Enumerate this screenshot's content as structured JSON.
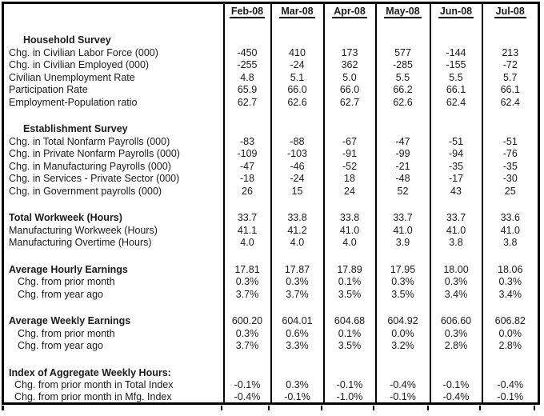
{
  "chart_data": {
    "type": "table",
    "title": "",
    "columns": [
      "Feb-08",
      "Mar-08",
      "Apr-08",
      "May-08",
      "Jun-08",
      "Jul-08"
    ],
    "groups": [
      {
        "rows": [
          {
            "label": "Household Survey",
            "style": "section"
          },
          {
            "label": "Chg. in Civilian Labor Force (000)",
            "values": [
              "-450",
              "410",
              "173",
              "577",
              "-144",
              "213"
            ]
          },
          {
            "label": "Chg. in Civilian Employed (000)",
            "values": [
              "-255",
              "-24",
              "362",
              "-285",
              "-155",
              "-72"
            ]
          },
          {
            "label": "Civilian Unemployment Rate",
            "values": [
              "4.8",
              "5.1",
              "5.0",
              "5.5",
              "5.5",
              "5.7"
            ]
          },
          {
            "label": "Participation Rate",
            "values": [
              "65.9",
              "66.0",
              "66.0",
              "66.2",
              "66.1",
              "66.1"
            ]
          },
          {
            "label": "Employment-Population ratio",
            "values": [
              "62.7",
              "62.6",
              "62.7",
              "62.6",
              "62.4",
              "62.4"
            ]
          }
        ]
      },
      {
        "rows": [
          {
            "label": "Establishment Survey",
            "style": "section"
          },
          {
            "label": "Chg. in Total Nonfarm Payrolls (000)",
            "values": [
              "-83",
              "-88",
              "-67",
              "-47",
              "-51",
              "-51"
            ]
          },
          {
            "label": "Chg. in Private Nonfarm Payrolls (000)",
            "values": [
              "-109",
              "-103",
              "-91",
              "-99",
              "-94",
              "-76"
            ]
          },
          {
            "label": "Chg. in Manufacturing Payrolls (000)",
            "values": [
              "-47",
              "-46",
              "-52",
              "-21",
              "-35",
              "-35"
            ]
          },
          {
            "label": "Chg. in Services - Private Sector (000)",
            "values": [
              "-18",
              "-24",
              "18",
              "-48",
              "-17",
              "-30"
            ]
          },
          {
            "label": "Chg. in Government payrolls (000)",
            "values": [
              "26",
              "15",
              "24",
              "52",
              "43",
              "25"
            ]
          }
        ]
      },
      {
        "rows": [
          {
            "label": "Total Workweek (Hours)",
            "style": "bold",
            "values": [
              "33.7",
              "33.8",
              "33.8",
              "33.7",
              "33.7",
              "33.6"
            ]
          },
          {
            "label": "Manufacturing Workweek (Hours)",
            "values": [
              "41.1",
              "41.2",
              "41.0",
              "41.0",
              "41.0",
              "41.0"
            ]
          },
          {
            "label": "Manufacturing Overtime (Hours)",
            "values": [
              "4.0",
              "4.0",
              "4.0",
              "3.9",
              "3.8",
              "3.8"
            ]
          }
        ]
      },
      {
        "rows": [
          {
            "label": "Average Hourly Earnings",
            "style": "bold",
            "values": [
              "17.81",
              "17.87",
              "17.89",
              "17.95",
              "18.00",
              "18.06"
            ]
          },
          {
            "label": "Chg. from prior month",
            "style": "sub",
            "values": [
              "0.3%",
              "0.3%",
              "0.1%",
              "0.3%",
              "0.3%",
              "0.3%"
            ]
          },
          {
            "label": "Chg. from year ago",
            "style": "sub",
            "values": [
              "3.7%",
              "3.7%",
              "3.5%",
              "3.5%",
              "3.4%",
              "3.4%"
            ]
          }
        ]
      },
      {
        "rows": [
          {
            "label": "Average Weekly Earnings",
            "style": "bold",
            "values": [
              "600.20",
              "604.01",
              "604.68",
              "604.92",
              "606.60",
              "606.82"
            ]
          },
          {
            "label": "Chg. from prior month",
            "style": "sub",
            "values": [
              "0.3%",
              "0.6%",
              "0.1%",
              "0.0%",
              "0.3%",
              "0.0%"
            ]
          },
          {
            "label": "Chg. from year ago",
            "style": "sub",
            "values": [
              "3.7%",
              "3.3%",
              "3.5%",
              "3.2%",
              "2.8%",
              "2.8%"
            ]
          }
        ]
      },
      {
        "rows": [
          {
            "label": "Index of Aggregate Weekly Hours:",
            "style": "bold"
          },
          {
            "label": "Chg. from prior month in Total Index",
            "style": "subsm",
            "values": [
              "-0.1%",
              "0.3%",
              "-0.1%",
              "-0.4%",
              "-0.1%",
              "-0.4%"
            ]
          },
          {
            "label": "Chg. from prior month in Mfg. Index",
            "style": "subsm",
            "values": [
              "-0.4%",
              "-0.1%",
              "-1.0%",
              "-0.1%",
              "-0.4%",
              "-0.1%"
            ]
          }
        ]
      }
    ]
  }
}
